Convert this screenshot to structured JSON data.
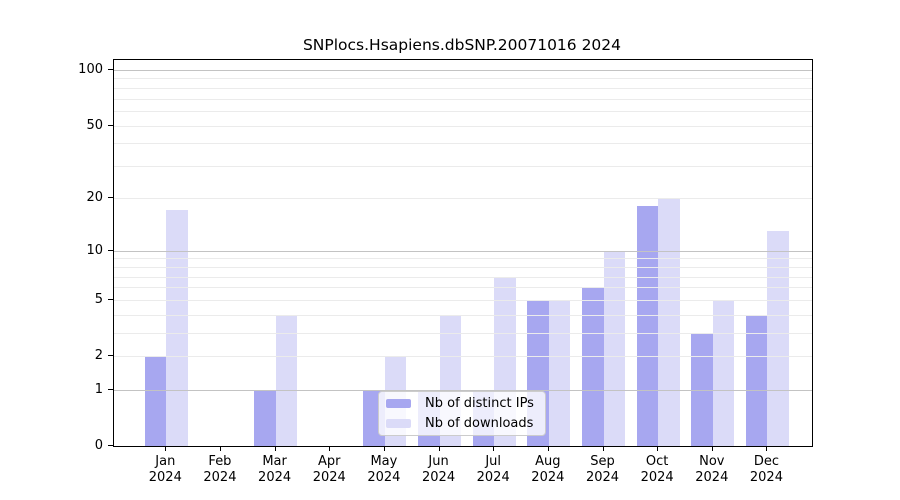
{
  "chart_data": {
    "type": "bar",
    "title": "SNPlocs.Hsapiens.dbSNP.20071016 2024",
    "categories": [
      {
        "month": "Jan",
        "year": "2024"
      },
      {
        "month": "Feb",
        "year": "2024"
      },
      {
        "month": "Mar",
        "year": "2024"
      },
      {
        "month": "Apr",
        "year": "2024"
      },
      {
        "month": "May",
        "year": "2024"
      },
      {
        "month": "Jun",
        "year": "2024"
      },
      {
        "month": "Jul",
        "year": "2024"
      },
      {
        "month": "Aug",
        "year": "2024"
      },
      {
        "month": "Sep",
        "year": "2024"
      },
      {
        "month": "Oct",
        "year": "2024"
      },
      {
        "month": "Nov",
        "year": "2024"
      },
      {
        "month": "Dec",
        "year": "2024"
      }
    ],
    "series": [
      {
        "name": "Nb of distinct IPs",
        "color": "#a7a7f0",
        "values": [
          2,
          0,
          1,
          0,
          1,
          1,
          1,
          5,
          6,
          18,
          3,
          4
        ]
      },
      {
        "name": "Nb of downloads",
        "color": "#dbdbf8",
        "values": [
          17,
          0,
          4,
          0,
          2,
          4,
          7,
          5,
          10,
          20,
          5,
          13
        ]
      }
    ],
    "y_axis": {
      "scale": "log1p",
      "ylim": [
        0,
        113
      ],
      "tick_values": [
        0,
        1,
        2,
        5,
        10,
        20,
        50,
        100
      ],
      "major_grid_values": [
        1,
        10,
        100
      ],
      "minor_grid_values": [
        2,
        3,
        4,
        5,
        6,
        7,
        8,
        9,
        20,
        30,
        40,
        50,
        60,
        70,
        80,
        90
      ]
    },
    "grid": true,
    "legend": {
      "position": "bottom-center-inside"
    }
  }
}
